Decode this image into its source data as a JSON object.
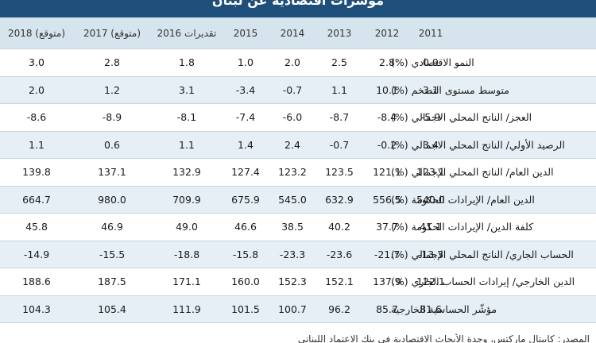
{
  "title": "مؤشرات اقتصادية عن لبنان",
  "columns": [
    "2018 (متوقع)",
    "2017 (متوقع)",
    "تقديرات 2016",
    "2015",
    "2014",
    "2013",
    "2012",
    "2011"
  ],
  "rows": [
    {
      "label": "النمو الاقتصادي (%)",
      "values": [
        "3.0",
        "2.8",
        "1.8",
        "1.0",
        "2.0",
        "2.5",
        "2.8",
        "0.9"
      ]
    },
    {
      "label": "متوسط مستوى التضخم (%)",
      "values": [
        "2.0",
        "1.2",
        "3.1",
        "-3.4",
        "-0.7",
        "1.1",
        "10.1",
        "3.1"
      ]
    },
    {
      "label": "العجز/ الناتج المحلي الاجمالي (%)",
      "values": [
        "-8.6",
        "-8.9",
        "-8.1",
        "-7.4",
        "-6.0",
        "-8.7",
        "-8.4",
        "-5.9"
      ]
    },
    {
      "label": "الرصيد الأولي/ الناتج المحلي الاجمالي (%)",
      "values": [
        "1.1",
        "0.6",
        "1.1",
        "1.4",
        "2.4",
        "-0.7",
        "-0.2",
        "3.4"
      ]
    },
    {
      "label": "الدين العام/ الناتج المحلي الإجمالي (%)",
      "values": [
        "139.8",
        "137.1",
        "132.9",
        "127.4",
        "123.2",
        "123.5",
        "121.1",
        "123.1"
      ]
    },
    {
      "label": "الدين العام/ الإيرادات الحكومة (%)",
      "values": [
        "664.7",
        "980.0",
        "709.9",
        "675.9",
        "545.0",
        "632.9",
        "556.5",
        "540.0"
      ]
    },
    {
      "label": "كلفة الدين/ الإيرادات الحكومة (%)",
      "values": [
        "45.8",
        "46.9",
        "49.0",
        "46.6",
        "38.5",
        "40.2",
        "37.7",
        "41.1"
      ]
    },
    {
      "label": "الحساب الجاري/ الناتج المحلي الإجمالي (%)",
      "values": [
        "-14.9",
        "-15.5",
        "-18.8",
        "-15.8",
        "-23.3",
        "-23.6",
        "-21.7",
        "-13.3"
      ]
    },
    {
      "label": "الدين الخارجي/ إيرادات الحساب الجاري (%)",
      "values": [
        "188.6",
        "187.5",
        "171.1",
        "160.0",
        "152.3",
        "152.1",
        "137.9",
        "122.1"
      ]
    },
    {
      "label": "مؤشّر الحساسية الخارجية",
      "values": [
        "104.3",
        "105.4",
        "111.9",
        "101.5",
        "100.7",
        "96.2",
        "85.7",
        "81.6"
      ]
    }
  ],
  "footnote": "المصدر: كابيتال ماركتس، وحدة الأبحاث الاقتصادية في بنك الاعتماد اللبناني"
}
